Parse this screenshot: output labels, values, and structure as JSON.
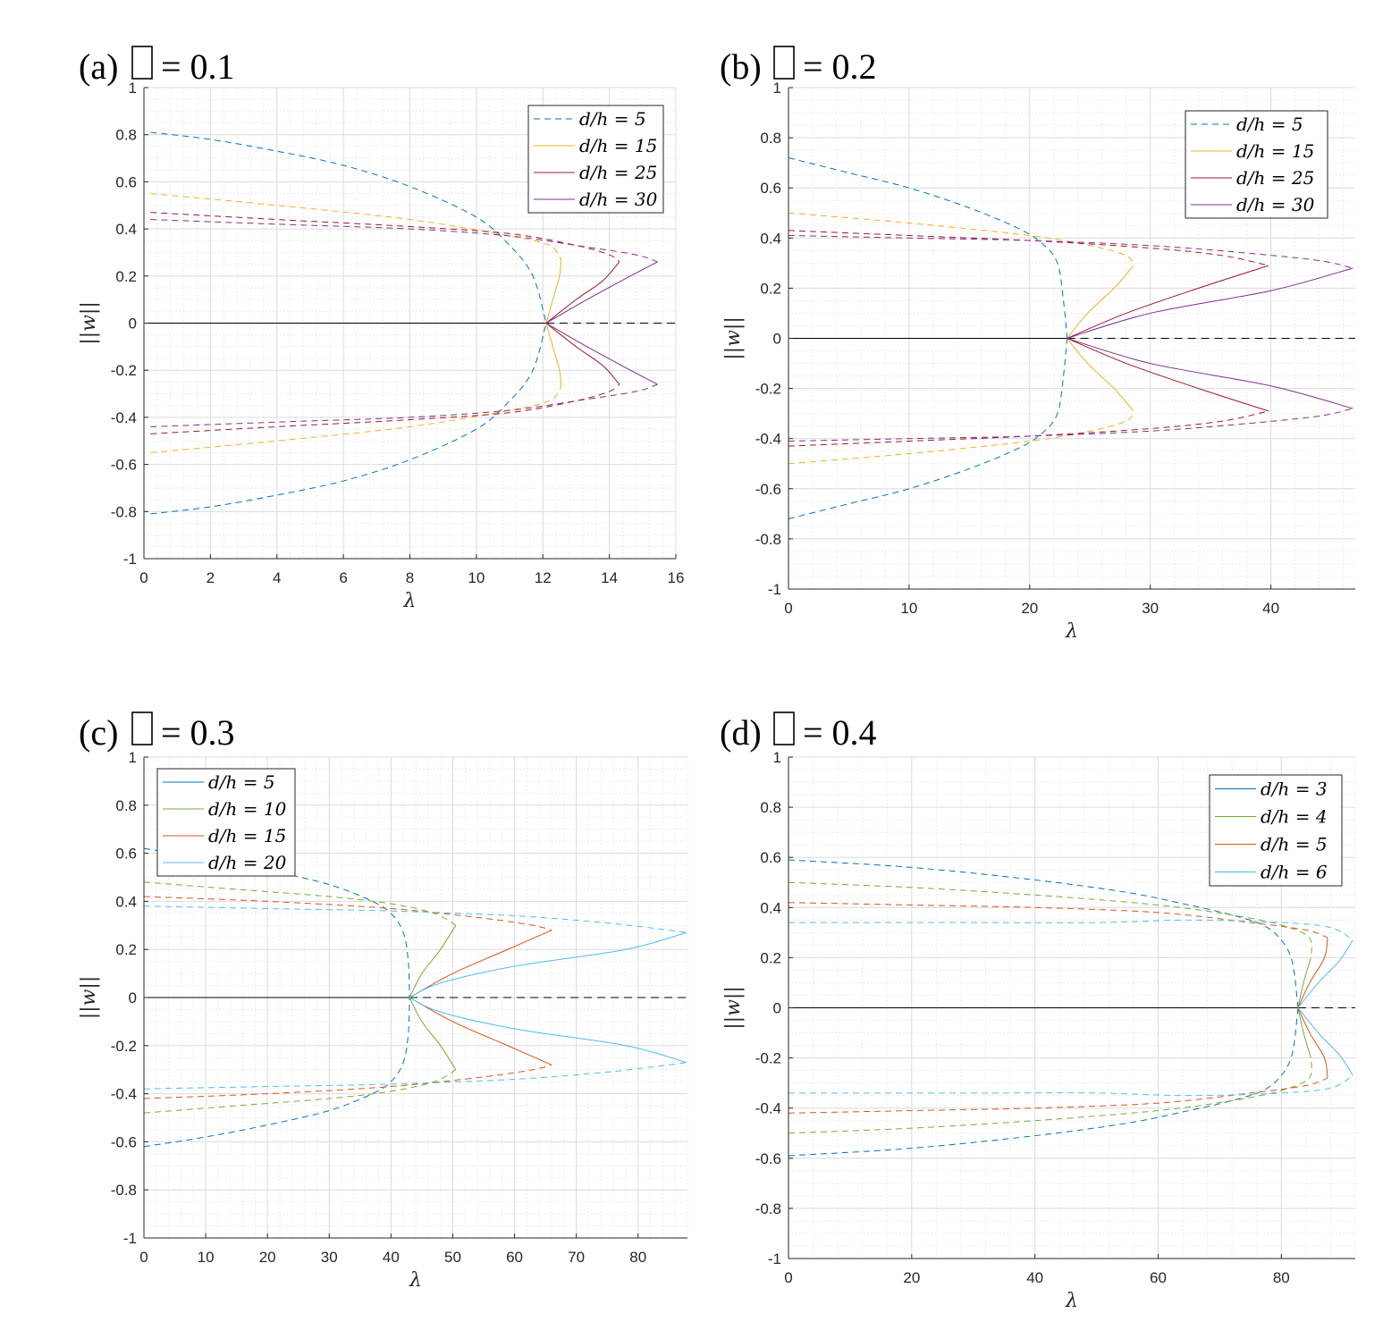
{
  "chart_data": [
    {
      "type": "line",
      "panel_label": "(a)",
      "title_value": "= 0.1",
      "xlabel": "λ",
      "ylabel": "||w||",
      "xlim": [
        0,
        16
      ],
      "ylim": [
        -1,
        1
      ],
      "xticks": [
        "0",
        "2",
        "4",
        "6",
        "8",
        "10",
        "12",
        "14",
        "16"
      ],
      "yticks": [
        "-1",
        "-0.8",
        "-0.6",
        "-0.4",
        "-0.2",
        "0",
        "0.2",
        "0.4",
        "0.6",
        "0.8",
        "1"
      ],
      "grid": true,
      "legend_position": "top-right",
      "bifurcation_point": 12.1,
      "series": [
        {
          "name": "d/h = 5",
          "color": "#0072BD",
          "legend_dashed": true,
          "branch": [
            [
              0.2,
              0.81
            ],
            [
              2,
              0.78
            ],
            [
              4,
              0.73
            ],
            [
              6,
              0.67
            ],
            [
              8,
              0.58
            ],
            [
              10,
              0.45
            ],
            [
              11,
              0.33
            ],
            [
              11.7,
              0.2
            ],
            [
              12.1,
              0
            ]
          ]
        },
        {
          "name": "d/h = 15",
          "color": "#EDB120",
          "legend_dashed": false,
          "branch": [
            [
              0.2,
              0.55
            ],
            [
              4,
              0.5
            ],
            [
              8,
              0.44
            ],
            [
              11,
              0.37
            ],
            [
              12.2,
              0.33
            ],
            [
              12.55,
              0.27
            ],
            [
              12.5,
              0.2
            ],
            [
              12.3,
              0.1
            ],
            [
              12.1,
              0
            ]
          ]
        },
        {
          "name": "d/h = 25",
          "color": "#A2142F",
          "legend_dashed": false,
          "branch": [
            [
              0.2,
              0.47
            ],
            [
              4,
              0.44
            ],
            [
              8,
              0.41
            ],
            [
              11,
              0.38
            ],
            [
              13,
              0.33
            ],
            [
              14,
              0.29
            ],
            [
              14.3,
              0.26
            ],
            [
              13.8,
              0.18
            ],
            [
              13,
              0.1
            ],
            [
              12.1,
              0
            ]
          ]
        },
        {
          "name": "d/h = 30",
          "color": "#7E2F8E",
          "legend_dashed": false,
          "branch": [
            [
              0.2,
              0.44
            ],
            [
              4,
              0.42
            ],
            [
              8,
              0.4
            ],
            [
              11,
              0.37
            ],
            [
              13,
              0.33
            ],
            [
              14.8,
              0.29
            ],
            [
              15.45,
              0.26
            ],
            [
              14.5,
              0.19
            ],
            [
              13.2,
              0.09
            ],
            [
              12.1,
              0
            ]
          ]
        }
      ],
      "trivial_stable": [
        0,
        12.1
      ],
      "trivial_unstable": [
        12.1,
        16
      ]
    },
    {
      "type": "line",
      "panel_label": "(b)",
      "title_value": "= 0.2",
      "xlabel": "λ",
      "ylabel": "||w||",
      "xlim": [
        0,
        47
      ],
      "ylim": [
        -1,
        1
      ],
      "xticks": [
        "0",
        "10",
        "20",
        "30",
        "40"
      ],
      "yticks": [
        "-1",
        "-0.8",
        "-0.6",
        "-0.4",
        "-0.2",
        "0",
        "0.2",
        "0.4",
        "0.6",
        "0.8",
        "1"
      ],
      "grid": true,
      "legend_position": "top-right",
      "bifurcation_point": 23.1,
      "series": [
        {
          "name": "d/h = 5",
          "color": "#0072BD",
          "legend_dashed": true,
          "branch": [
            [
              0,
              0.72
            ],
            [
              5,
              0.66
            ],
            [
              10,
              0.6
            ],
            [
              15,
              0.52
            ],
            [
              19,
              0.44
            ],
            [
              21,
              0.38
            ],
            [
              22.3,
              0.3
            ],
            [
              22.8,
              0.15
            ],
            [
              23.1,
              0
            ]
          ]
        },
        {
          "name": "d/h = 15",
          "color": "#EDB120",
          "legend_dashed": false,
          "branch": [
            [
              0,
              0.5
            ],
            [
              10,
              0.46
            ],
            [
              20,
              0.41
            ],
            [
              25,
              0.37
            ],
            [
              28,
              0.33
            ],
            [
              28.6,
              0.29
            ],
            [
              27,
              0.2
            ],
            [
              24.8,
              0.1
            ],
            [
              23.1,
              0
            ]
          ]
        },
        {
          "name": "d/h = 25",
          "color": "#A2142F",
          "legend_dashed": false,
          "branch": [
            [
              0,
              0.43
            ],
            [
              10,
              0.41
            ],
            [
              20,
              0.39
            ],
            [
              30,
              0.36
            ],
            [
              36,
              0.33
            ],
            [
              39.8,
              0.29
            ],
            [
              34,
              0.2
            ],
            [
              28,
              0.1
            ],
            [
              23.1,
              0
            ]
          ]
        },
        {
          "name": "d/h = 30",
          "color": "#7E2F8E",
          "legend_dashed": false,
          "branch": [
            [
              0,
              0.41
            ],
            [
              10,
              0.4
            ],
            [
              20,
              0.39
            ],
            [
              30,
              0.37
            ],
            [
              38,
              0.34
            ],
            [
              44,
              0.31
            ],
            [
              46.8,
              0.28
            ],
            [
              40,
              0.19
            ],
            [
              30,
              0.1
            ],
            [
              23.1,
              0
            ]
          ]
        }
      ],
      "trivial_stable": [
        0,
        23.1
      ],
      "trivial_unstable": [
        23.1,
        47
      ]
    },
    {
      "type": "line",
      "panel_label": "(c)",
      "title_value": "= 0.3",
      "xlabel": "λ",
      "ylabel": "||w||",
      "xlim": [
        0,
        88
      ],
      "ylim": [
        -1,
        1
      ],
      "xticks": [
        "0",
        "10",
        "20",
        "30",
        "40",
        "50",
        "60",
        "70",
        "80"
      ],
      "yticks": [
        "-1",
        "-0.8",
        "-0.6",
        "-0.4",
        "-0.2",
        "0",
        "0.2",
        "0.4",
        "0.6",
        "0.8",
        "1"
      ],
      "grid": true,
      "legend_position": "top-left",
      "bifurcation_point": 43,
      "series": [
        {
          "name": "d/h = 5",
          "color": "#0072BD",
          "legend_dashed": false,
          "branch": [
            [
              0,
              0.62
            ],
            [
              10,
              0.58
            ],
            [
              20,
              0.53
            ],
            [
              30,
              0.47
            ],
            [
              37,
              0.4
            ],
            [
              40,
              0.35
            ],
            [
              42,
              0.27
            ],
            [
              42.8,
              0.15
            ],
            [
              43,
              0
            ]
          ]
        },
        {
          "name": "d/h = 10",
          "color": "#77AC30",
          "legend_dashed": false,
          "branch": [
            [
              0,
              0.48
            ],
            [
              15,
              0.45
            ],
            [
              30,
              0.42
            ],
            [
              40,
              0.39
            ],
            [
              47,
              0.35
            ],
            [
              50.5,
              0.3
            ],
            [
              48,
              0.2
            ],
            [
              45,
              0.1
            ],
            [
              43,
              0
            ]
          ]
        },
        {
          "name": "d/h = 15",
          "color": "#D95319",
          "legend_dashed": false,
          "branch": [
            [
              0,
              0.42
            ],
            [
              20,
              0.4
            ],
            [
              40,
              0.37
            ],
            [
              55,
              0.33
            ],
            [
              63,
              0.3
            ],
            [
              66,
              0.28
            ],
            [
              58,
              0.19
            ],
            [
              50,
              0.1
            ],
            [
              43,
              0
            ]
          ]
        },
        {
          "name": "d/h = 20",
          "color": "#4DBEEE",
          "legend_dashed": false,
          "branch": [
            [
              0,
              0.38
            ],
            [
              20,
              0.37
            ],
            [
              40,
              0.36
            ],
            [
              60,
              0.34
            ],
            [
              75,
              0.31
            ],
            [
              85,
              0.28
            ],
            [
              87.8,
              0.27
            ],
            [
              78,
              0.2
            ],
            [
              60,
              0.13
            ],
            [
              48,
              0.06
            ],
            [
              43,
              0
            ]
          ]
        }
      ],
      "trivial_stable": [
        0,
        43
      ],
      "trivial_unstable": [
        43,
        88
      ]
    },
    {
      "type": "line",
      "panel_label": "(d)",
      "title_value": "= 0.4",
      "xlabel": "λ",
      "ylabel": "||w||",
      "xlim": [
        0,
        92
      ],
      "ylim": [
        -1,
        1
      ],
      "xticks": [
        "0",
        "20",
        "40",
        "60",
        "80"
      ],
      "yticks": [
        "-1",
        "-0.8",
        "-0.6",
        "-0.4",
        "-0.2",
        "0",
        "0.2",
        "0.4",
        "0.6",
        "0.8",
        "1"
      ],
      "grid": true,
      "legend_position": "top-right",
      "bifurcation_point": 82.7,
      "series": [
        {
          "name": "d/h = 3",
          "color": "#0072BD",
          "legend_dashed": false,
          "branch": [
            [
              0,
              0.59
            ],
            [
              20,
              0.56
            ],
            [
              40,
              0.51
            ],
            [
              55,
              0.46
            ],
            [
              65,
              0.41
            ],
            [
              72,
              0.37
            ],
            [
              77,
              0.33
            ],
            [
              80,
              0.27
            ],
            [
              81.8,
              0.18
            ],
            [
              82.7,
              0
            ]
          ]
        },
        {
          "name": "d/h = 4",
          "color": "#77AC30",
          "legend_dashed": false,
          "branch": [
            [
              0,
              0.5
            ],
            [
              20,
              0.48
            ],
            [
              40,
              0.45
            ],
            [
              60,
              0.41
            ],
            [
              72,
              0.37
            ],
            [
              80,
              0.33
            ],
            [
              84.5,
              0.28
            ],
            [
              84.8,
              0.2
            ],
            [
              83.6,
              0.1
            ],
            [
              82.7,
              0
            ]
          ]
        },
        {
          "name": "d/h = 5",
          "color": "#D95319",
          "legend_dashed": false,
          "branch": [
            [
              0,
              0.42
            ],
            [
              20,
              0.41
            ],
            [
              40,
              0.4
            ],
            [
              60,
              0.38
            ],
            [
              75,
              0.34
            ],
            [
              84,
              0.31
            ],
            [
              87.5,
              0.28
            ],
            [
              87,
              0.2
            ],
            [
              84.6,
              0.1
            ],
            [
              82.7,
              0
            ]
          ]
        },
        {
          "name": "d/h = 6",
          "color": "#4DBEEE",
          "legend_dashed": false,
          "branch": [
            [
              0,
              0.34
            ],
            [
              30,
              0.34
            ],
            [
              50,
              0.34
            ],
            [
              65,
              0.35
            ],
            [
              80,
              0.34
            ],
            [
              88,
              0.32
            ],
            [
              91.6,
              0.27
            ],
            [
              89.5,
              0.19
            ],
            [
              86,
              0.1
            ],
            [
              82.7,
              0
            ]
          ]
        }
      ],
      "trivial_stable": [
        0,
        82.7
      ],
      "trivial_unstable": [
        82.7,
        92
      ]
    }
  ]
}
